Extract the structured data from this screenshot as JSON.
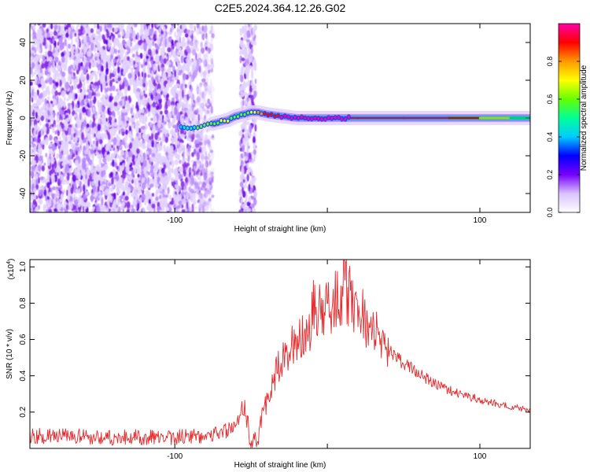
{
  "title": "C2E5.2024.364.12.26.G02",
  "chart_data": [
    {
      "type": "heatmap",
      "title": "C2E5.2024.364.12.26.G02",
      "xlabel": "Height of straight line (km)",
      "ylabel": "Frequency (Hz)",
      "xlim": [
        -195,
        133
      ],
      "ylim": [
        -50,
        50
      ],
      "x_ticks": [
        -100,
        0,
        100
      ],
      "x_tick_labels": [
        "-100",
        "",
        "100"
      ],
      "y_ticks": [
        -40,
        -20,
        0,
        20,
        40
      ],
      "y_tick_labels": [
        "-40",
        "-20",
        "0",
        "20",
        "40"
      ],
      "colorbar": {
        "label": "Normalized spectral amplitude",
        "range": [
          0,
          1
        ],
        "ticks": [
          0.0,
          0.2,
          0.4,
          0.6,
          0.8
        ],
        "tick_labels": [
          "0.0",
          "0.2",
          "0.4",
          "0.6",
          "0.8"
        ],
        "colors": [
          "#ffffff",
          "#d9c2ff",
          "#7700ff",
          "#0000ff",
          "#00ccff",
          "#00ff99",
          "#66ff00",
          "#ffff00",
          "#ff9900",
          "#ff0000",
          "#ff00aa"
        ]
      },
      "regions": [
        {
          "name": "noise",
          "x_range": [
            -195,
            -75
          ],
          "freq_range": [
            -50,
            50
          ],
          "amplitude": 0.2
        },
        {
          "name": "noise-band",
          "x_range": [
            -57,
            -47
          ],
          "freq_range": [
            -50,
            50
          ],
          "amplitude": 0.2
        }
      ],
      "ridge": [
        {
          "x": -95,
          "freq": -5,
          "amplitude": 0.35
        },
        {
          "x": -90,
          "freq": -5,
          "amplitude": 0.4
        },
        {
          "x": -85,
          "freq": -5,
          "amplitude": 0.45
        },
        {
          "x": -75,
          "freq": -3,
          "amplitude": 0.5
        },
        {
          "x": -70,
          "freq": -2,
          "amplitude": 0.55
        },
        {
          "x": -65,
          "freq": -1,
          "amplitude": 0.55
        },
        {
          "x": -60,
          "freq": 1,
          "amplitude": 0.5
        },
        {
          "x": -50,
          "freq": 3,
          "amplitude": 0.55
        },
        {
          "x": -45,
          "freq": 3,
          "amplitude": 0.7
        },
        {
          "x": -40,
          "freq": 2,
          "amplitude": 0.8
        },
        {
          "x": -30,
          "freq": 1,
          "amplitude": 0.85
        },
        {
          "x": -20,
          "freq": 0,
          "amplitude": 0.9
        },
        {
          "x": -10,
          "freq": 0,
          "amplitude": 0.9
        },
        {
          "x": 0,
          "freq": 0,
          "amplitude": 0.95
        },
        {
          "x": 10,
          "freq": 0,
          "amplitude": 0.95
        },
        {
          "x": 20,
          "freq": 0,
          "amplitude": 1.0
        },
        {
          "x": 50,
          "freq": 0,
          "amplitude": 1.0
        },
        {
          "x": 80,
          "freq": 0,
          "amplitude": 1.0
        },
        {
          "x": 100,
          "freq": 0,
          "amplitude": 0.85
        },
        {
          "x": 120,
          "freq": 0,
          "amplitude": 0.55
        },
        {
          "x": 133,
          "freq": 0,
          "amplitude": 0.45
        }
      ]
    },
    {
      "type": "line",
      "xlabel": "Height of straight line (km)",
      "ylabel": "SNR (10 * v/v)",
      "y_scale_label": "(x10",
      "y_scale_exponent": "4",
      "xlim": [
        -195,
        133
      ],
      "ylim": [
        0,
        1.04
      ],
      "x_ticks": [
        -100,
        0,
        100
      ],
      "x_tick_labels": [
        "-100",
        "",
        "100"
      ],
      "y_ticks": [
        0.2,
        0.4,
        0.6,
        0.8,
        1.0
      ],
      "y_tick_labels": [
        "0.2",
        "0.4",
        "0.6",
        "0.8",
        "1.0"
      ],
      "color": "#e8282b",
      "series": [
        {
          "x": [
            -195,
            -170,
            -140,
            -110,
            -90,
            -75,
            -65,
            -60,
            -56,
            -54,
            -52,
            -50,
            -48,
            -46,
            -44,
            -40,
            -36,
            -32,
            -28,
            -24,
            -20,
            -16,
            -12,
            -8,
            -4,
            0,
            4,
            8,
            12,
            16,
            20,
            24,
            28,
            32,
            36,
            40,
            50,
            60,
            70,
            80,
            90,
            100,
            110,
            120,
            133
          ],
          "y": [
            0.07,
            0.065,
            0.06,
            0.06,
            0.065,
            0.08,
            0.1,
            0.14,
            0.2,
            0.24,
            0.12,
            0.04,
            0.03,
            0.05,
            0.12,
            0.25,
            0.36,
            0.45,
            0.5,
            0.55,
            0.6,
            0.62,
            0.66,
            0.8,
            0.72,
            0.76,
            0.82,
            0.85,
            0.88,
            0.82,
            0.78,
            0.72,
            0.66,
            0.62,
            0.58,
            0.54,
            0.47,
            0.41,
            0.36,
            0.32,
            0.29,
            0.27,
            0.25,
            0.23,
            0.21
          ]
        }
      ]
    }
  ]
}
